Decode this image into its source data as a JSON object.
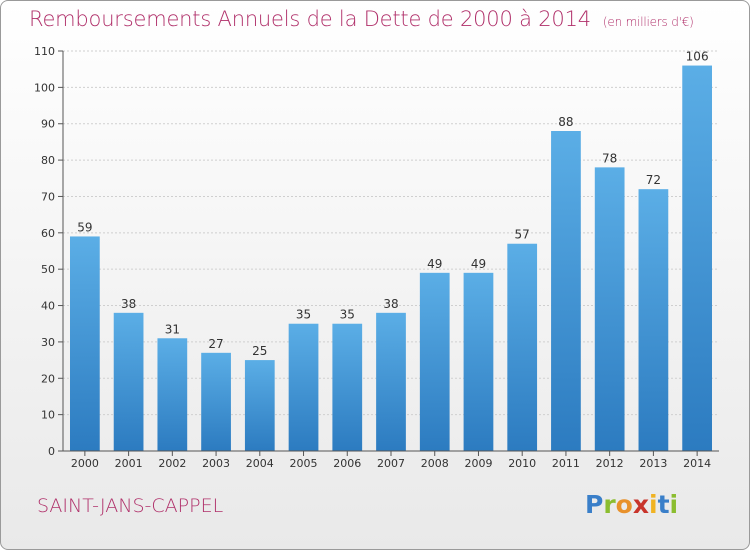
{
  "header": {
    "title": "Remboursements Annuels de la Dette de 2000 à 2014",
    "unit": "(en milliers d'€)"
  },
  "footer": {
    "city": "SAINT-JANS-CAPPEL"
  },
  "brand": {
    "letters": [
      "P",
      "r",
      "o",
      "x",
      "i",
      "t",
      "i"
    ],
    "colors": [
      "#3a7fc9",
      "#8bbd2f",
      "#e8912b",
      "#c8342b",
      "#f0b323",
      "#3a7fc9",
      "#8bbd2f"
    ]
  },
  "colors": {
    "bar_top": "#5baee6",
    "bar_bottom": "#2c7bc0",
    "grid": "#cfcfcf"
  },
  "chart_data": {
    "type": "bar",
    "title": "Remboursements Annuels de la Dette de 2000 à 2014",
    "xlabel": "",
    "ylabel": "(en milliers d'€)",
    "categories": [
      "2000",
      "2001",
      "2002",
      "2003",
      "2004",
      "2005",
      "2006",
      "2007",
      "2008",
      "2009",
      "2010",
      "2011",
      "2012",
      "2013",
      "2014"
    ],
    "values": [
      59,
      38,
      31,
      27,
      25,
      35,
      35,
      38,
      49,
      49,
      57,
      88,
      78,
      72,
      106
    ],
    "ylim": [
      0,
      110
    ],
    "yticks": [
      0,
      10,
      20,
      30,
      40,
      50,
      60,
      70,
      80,
      90,
      100,
      110
    ],
    "grid": true
  }
}
